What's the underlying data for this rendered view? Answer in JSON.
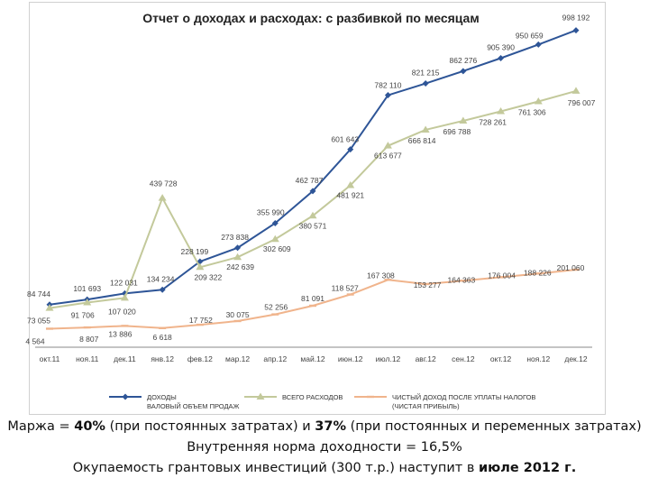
{
  "chart_data": {
    "type": "line",
    "title": "Отчет о доходах и расходах: с разбивкой по месяцам",
    "categories": [
      "окт.11",
      "ноя.11",
      "дек.11",
      "янв.12",
      "фев.12",
      "мар.12",
      "апр.12",
      "май.12",
      "июн.12",
      "июл.12",
      "авг.12",
      "сен.12",
      "окт.12",
      "ноя.12",
      "дек.12"
    ],
    "series": [
      {
        "name": "ДОХОДЫ ВАЛОВЫЙ ОБЪЕМ ПРОДАЖ",
        "color": "#2e5597",
        "marker": "diamond",
        "values": [
          84744,
          101693,
          122031,
          134234,
          228199,
          273838,
          355990,
          462787,
          601643,
          782110,
          821215,
          862276,
          905390,
          950659,
          998192
        ],
        "labels": [
          "84 744",
          "101 693",
          "122 031",
          "134 234",
          "228 199",
          "273 838",
          "355 990",
          "462 787",
          "601 643",
          "782 110",
          "821 215",
          "862 276",
          "905 390",
          "950 659",
          "998 192"
        ]
      },
      {
        "name": "ВСЕГО РАСХОДОВ",
        "color": "#c3c99b",
        "marker": "triangle",
        "values": [
          73055,
          91706,
          107020,
          439728,
          209322,
          242639,
          302609,
          380571,
          481921,
          613677,
          666814,
          696788,
          728261,
          761306,
          796007
        ],
        "labels": [
          "73 055",
          "91 706",
          "107 020",
          "439 728",
          "209 322",
          "242 639",
          "302 609",
          "380 571",
          "481 921",
          "613 677",
          "666 814",
          "696 788",
          "728 261",
          "761 306",
          "796 007"
        ]
      },
      {
        "name": "ЧИСТЫЙ ДОХОД ПОСЛЕ УПЛАТЫ НАЛОГОВ (ЧИСТАЯ ПРИБЫЛЬ)",
        "color": "#f0b48c",
        "marker": "dash",
        "values": [
          4564,
          8807,
          13886,
          6618,
          17752,
          30075,
          52256,
          81091,
          118527,
          167308,
          153277,
          164363,
          176004,
          188226,
          201060
        ],
        "labels": [
          "4 564",
          "8 807",
          "13 886",
          "6 618",
          "17 752",
          "30 075",
          "52 256",
          "81 091",
          "118 527",
          "167 308",
          "153 277",
          "164 363",
          "176 004",
          "188 226",
          "201 060"
        ]
      }
    ],
    "legend_position": "bottom",
    "grid": false
  },
  "footer": {
    "line1_pre": "Маржа = ",
    "line1_v1": "40%",
    "line1_mid": " (при постоянных затратах) и ",
    "line1_v2": "37%",
    "line1_post": " (при постоянных и переменных затратах)",
    "line2": "Внутренняя норма доходности = 16,5%",
    "line3_pre": "Окупаемость грантовых инвестиций (300 т.р.) наступит в ",
    "line3_bold": "июле 2012 г."
  }
}
